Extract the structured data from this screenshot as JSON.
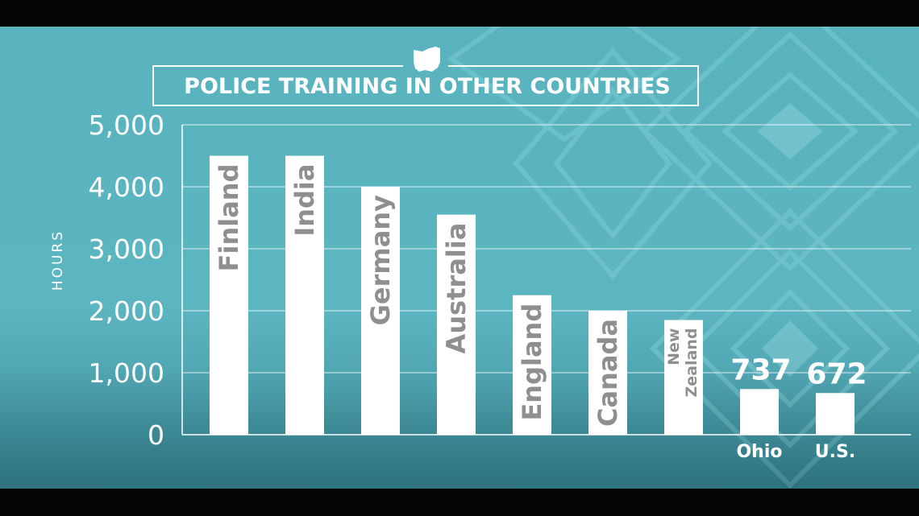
{
  "title": "POLICE TRAINING IN OTHER COUNTRIES",
  "title_icon": "ohio-state-icon",
  "colors": {
    "background": "#5cb6c1",
    "bar": "#ffffff",
    "bar_label": "#8f8f8f",
    "text": "#ffffff"
  },
  "chart_data": {
    "type": "bar",
    "title": "POLICE TRAINING IN OTHER COUNTRIES",
    "ylabel": "HOURS",
    "xlabel": "",
    "ylim": [
      0,
      5000
    ],
    "yticks": [
      0,
      1000,
      2000,
      3000,
      4000,
      5000
    ],
    "ytick_labels": [
      "0",
      "1,000",
      "2,000",
      "3,000",
      "4,000",
      "5,000"
    ],
    "grid": true,
    "categories": [
      "Finland",
      "India",
      "Germany",
      "Australia",
      "England",
      "Canada",
      "New Zealand",
      "Ohio",
      "U.S."
    ],
    "values": [
      4500,
      4500,
      4000,
      3550,
      2250,
      2000,
      1850,
      737,
      672
    ],
    "data_labels": [
      "",
      "",
      "",
      "",
      "",
      "",
      "",
      "737",
      "672"
    ]
  }
}
